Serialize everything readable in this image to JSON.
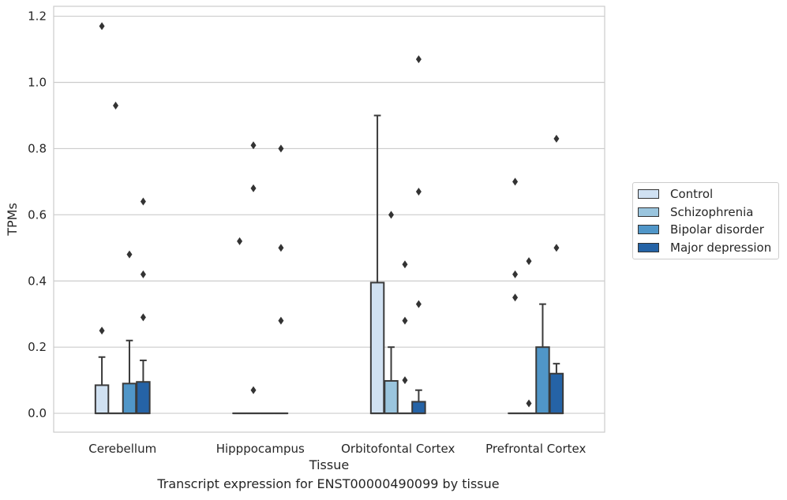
{
  "caption": "Transcript expression for ENST00000490099 by tissue",
  "chart_data": {
    "type": "boxplot",
    "title": "",
    "xlabel": "Tissue",
    "ylabel": "TPMs",
    "ylim": [
      -0.057,
      1.23
    ],
    "yticks": [
      0.0,
      0.2,
      0.4,
      0.6,
      0.8,
      1.0,
      1.2
    ],
    "ytick_labels": [
      "0.0",
      "0.2",
      "0.4",
      "0.6",
      "0.8",
      "1.0",
      "1.2"
    ],
    "grid": "horizontal",
    "legend_position": "right",
    "categories": [
      "Cerebellum",
      "Hipppocampus",
      "Orbitofontal Cortex",
      "Prefrontal Cortex"
    ],
    "series": [
      {
        "name": "Control",
        "color": "#d0e1f2",
        "boxes": [
          {
            "q1": 0.0,
            "median": 0.0,
            "q3": 0.085,
            "whisker_low": 0.0,
            "whisker_high": 0.17,
            "outliers": [
              0.25,
              1.17
            ]
          },
          {
            "q1": 0.0,
            "median": 0.0,
            "q3": 0.0,
            "whisker_low": 0.0,
            "whisker_high": 0.0,
            "outliers": [
              0.52
            ]
          },
          {
            "q1": 0.0,
            "median": 0.0,
            "q3": 0.395,
            "whisker_low": 0.0,
            "whisker_high": 0.9,
            "outliers": []
          },
          {
            "q1": 0.0,
            "median": 0.0,
            "q3": 0.0,
            "whisker_low": 0.0,
            "whisker_high": 0.0,
            "outliers": [
              0.35,
              0.42,
              0.7
            ]
          }
        ]
      },
      {
        "name": "Schizophrenia",
        "color": "#9ac5de",
        "boxes": [
          {
            "q1": 0.0,
            "median": 0.0,
            "q3": 0.0,
            "whisker_low": 0.0,
            "whisker_high": 0.0,
            "outliers": [
              0.93
            ]
          },
          {
            "q1": 0.0,
            "median": 0.0,
            "q3": 0.0,
            "whisker_low": 0.0,
            "whisker_high": 0.0,
            "outliers": [
              0.07,
              0.68,
              0.81
            ]
          },
          {
            "q1": 0.0,
            "median": 0.0,
            "q3": 0.098,
            "whisker_low": 0.0,
            "whisker_high": 0.2,
            "outliers": [
              0.6
            ]
          },
          {
            "q1": 0.0,
            "median": 0.0,
            "q3": 0.0,
            "whisker_low": 0.0,
            "whisker_high": 0.0,
            "outliers": [
              0.03,
              0.46
            ]
          }
        ]
      },
      {
        "name": "Bipolar disorder",
        "color": "#5096c8",
        "boxes": [
          {
            "q1": 0.0,
            "median": 0.0,
            "q3": 0.09,
            "whisker_low": 0.0,
            "whisker_high": 0.22,
            "outliers": [
              0.48
            ]
          },
          {
            "q1": 0.0,
            "median": 0.0,
            "q3": 0.0,
            "whisker_low": 0.0,
            "whisker_high": 0.0,
            "outliers": []
          },
          {
            "q1": 0.0,
            "median": 0.0,
            "q3": 0.0,
            "whisker_low": 0.0,
            "whisker_high": 0.0,
            "outliers": [
              0.1,
              0.28,
              0.45
            ]
          },
          {
            "q1": 0.0,
            "median": 0.0,
            "q3": 0.2,
            "whisker_low": 0.0,
            "whisker_high": 0.33,
            "outliers": []
          }
        ]
      },
      {
        "name": "Major depression",
        "color": "#2563a6",
        "boxes": [
          {
            "q1": 0.0,
            "median": 0.0,
            "q3": 0.095,
            "whisker_low": 0.0,
            "whisker_high": 0.16,
            "outliers": [
              0.29,
              0.42,
              0.64
            ]
          },
          {
            "q1": 0.0,
            "median": 0.0,
            "q3": 0.0,
            "whisker_low": 0.0,
            "whisker_high": 0.0,
            "outliers": [
              0.28,
              0.5,
              0.8
            ]
          },
          {
            "q1": 0.0,
            "median": 0.0,
            "q3": 0.035,
            "whisker_low": 0.0,
            "whisker_high": 0.07,
            "outliers": [
              0.33,
              0.67,
              1.07
            ]
          },
          {
            "q1": 0.0,
            "median": 0.0,
            "q3": 0.12,
            "whisker_low": 0.0,
            "whisker_high": 0.15,
            "outliers": [
              0.5,
              0.83
            ]
          }
        ]
      }
    ]
  }
}
